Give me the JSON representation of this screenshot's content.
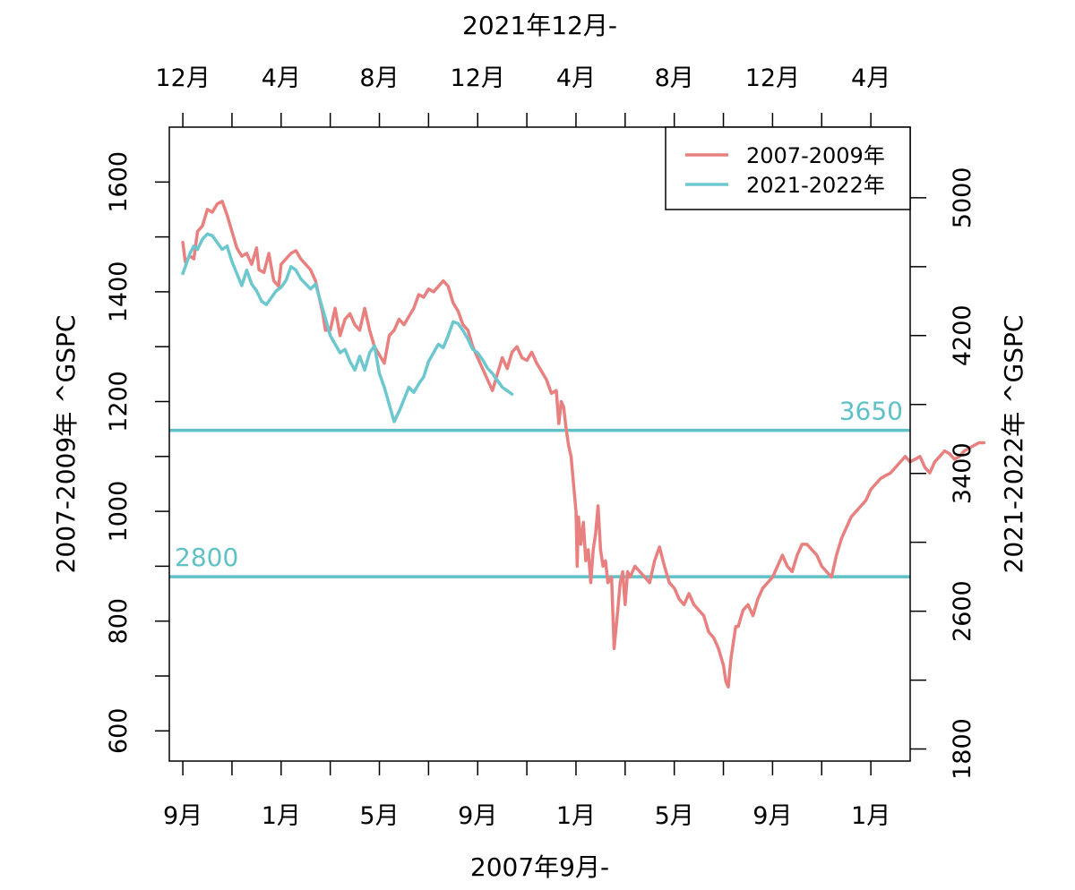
{
  "chart_data": {
    "type": "line",
    "title": "",
    "bottom_axis": {
      "label": "2007年9月-",
      "ticks": [
        "9月",
        "1月",
        "5月",
        "9月",
        "1月",
        "5月",
        "9月",
        "1月"
      ]
    },
    "top_axis": {
      "label": "2021年12月-",
      "ticks": [
        "12月",
        "4月",
        "8月",
        "12月",
        "4月",
        "8月",
        "12月",
        "4月"
      ]
    },
    "left_axis": {
      "label": "2007-2009年 ^GSPC",
      "ticks": [
        "600",
        "800",
        "1000",
        "1200",
        "1400",
        "1600"
      ],
      "ylim": [
        545,
        1700
      ]
    },
    "right_axis": {
      "label": "2021-2022年 ^GSPC",
      "ticks": [
        "1800",
        "2600",
        "3400",
        "4200",
        "5000"
      ],
      "ylim": [
        1730,
        5410
      ]
    },
    "x_months_bottom": {
      "start": "2007-09",
      "range_months": [
        -0.55,
        29.6
      ]
    },
    "x_months_top": {
      "start": "2021-12",
      "range_months": [
        -0.55,
        29.6
      ]
    },
    "legend": {
      "position": "top-right",
      "entries": [
        {
          "name": "2007-2009年",
          "color": "#E8807F"
        },
        {
          "name": "2021-2022年",
          "color": "#6CC8CE"
        }
      ]
    },
    "hlines": [
      {
        "label": "3650",
        "value": 3650,
        "axis": "right",
        "color": "#5FC0C8",
        "label_side": "right"
      },
      {
        "label": "2800",
        "value": 2800,
        "axis": "right",
        "color": "#5FC0C8",
        "label_side": "left"
      }
    ],
    "series": [
      {
        "name": "2007-2009年",
        "axis": "left",
        "color": "#E8807F",
        "points": [
          [
            0.0,
            1490
          ],
          [
            0.1,
            1455
          ],
          [
            0.3,
            1465
          ],
          [
            0.45,
            1460
          ],
          [
            0.6,
            1510
          ],
          [
            0.8,
            1520
          ],
          [
            1.0,
            1550
          ],
          [
            1.2,
            1545
          ],
          [
            1.4,
            1560
          ],
          [
            1.6,
            1565
          ],
          [
            1.8,
            1540
          ],
          [
            2.0,
            1510
          ],
          [
            2.2,
            1480
          ],
          [
            2.4,
            1465
          ],
          [
            2.6,
            1470
          ],
          [
            2.8,
            1450
          ],
          [
            3.0,
            1480
          ],
          [
            3.1,
            1440
          ],
          [
            3.3,
            1435
          ],
          [
            3.5,
            1470
          ],
          [
            3.7,
            1420
          ],
          [
            3.9,
            1410
          ],
          [
            4.0,
            1450
          ],
          [
            4.2,
            1460
          ],
          [
            4.4,
            1470
          ],
          [
            4.6,
            1475
          ],
          [
            4.8,
            1460
          ],
          [
            5.0,
            1450
          ],
          [
            5.2,
            1440
          ],
          [
            5.4,
            1420
          ],
          [
            5.6,
            1380
          ],
          [
            5.7,
            1360
          ],
          [
            5.8,
            1330
          ],
          [
            6.0,
            1330
          ],
          [
            6.2,
            1370
          ],
          [
            6.4,
            1320
          ],
          [
            6.6,
            1350
          ],
          [
            6.8,
            1360
          ],
          [
            7.0,
            1340
          ],
          [
            7.2,
            1330
          ],
          [
            7.4,
            1370
          ],
          [
            7.6,
            1330
          ],
          [
            7.8,
            1300
          ],
          [
            8.0,
            1285
          ],
          [
            8.2,
            1270
          ],
          [
            8.4,
            1320
          ],
          [
            8.6,
            1330
          ],
          [
            8.8,
            1350
          ],
          [
            9.0,
            1340
          ],
          [
            9.2,
            1355
          ],
          [
            9.4,
            1370
          ],
          [
            9.6,
            1395
          ],
          [
            9.8,
            1390
          ],
          [
            10.0,
            1405
          ],
          [
            10.2,
            1400
          ],
          [
            10.4,
            1410
          ],
          [
            10.6,
            1420
          ],
          [
            10.8,
            1410
          ],
          [
            11.0,
            1380
          ],
          [
            11.2,
            1365
          ],
          [
            11.4,
            1340
          ],
          [
            11.6,
            1330
          ],
          [
            11.8,
            1300
          ],
          [
            12.0,
            1280
          ],
          [
            12.2,
            1260
          ],
          [
            12.4,
            1240
          ],
          [
            12.6,
            1220
          ],
          [
            12.8,
            1250
          ],
          [
            13.0,
            1280
          ],
          [
            13.2,
            1260
          ],
          [
            13.4,
            1290
          ],
          [
            13.6,
            1300
          ],
          [
            13.8,
            1280
          ],
          [
            14.0,
            1275
          ],
          [
            14.2,
            1290
          ],
          [
            14.4,
            1270
          ],
          [
            14.6,
            1255
          ],
          [
            14.8,
            1240
          ],
          [
            15.0,
            1215
          ],
          [
            15.2,
            1220
          ],
          [
            15.3,
            1160
          ],
          [
            15.4,
            1200
          ],
          [
            15.5,
            1190
          ],
          [
            15.6,
            1150
          ],
          [
            15.7,
            1120
          ],
          [
            15.8,
            1100
          ],
          [
            15.9,
            1050
          ],
          [
            16.0,
            1000
          ],
          [
            16.05,
            900
          ],
          [
            16.1,
            990
          ],
          [
            16.2,
            940
          ],
          [
            16.3,
            980
          ],
          [
            16.4,
            910
          ],
          [
            16.5,
            930
          ],
          [
            16.6,
            870
          ],
          [
            16.7,
            930
          ],
          [
            16.8,
            960
          ],
          [
            16.9,
            1010
          ],
          [
            17.0,
            930
          ],
          [
            17.1,
            900
          ],
          [
            17.2,
            910
          ],
          [
            17.3,
            870
          ],
          [
            17.45,
            880
          ],
          [
            17.55,
            750
          ],
          [
            17.7,
            820
          ],
          [
            17.8,
            870
          ],
          [
            17.9,
            890
          ],
          [
            18.0,
            830
          ],
          [
            18.1,
            890
          ],
          [
            18.2,
            880
          ],
          [
            18.4,
            900
          ],
          [
            18.6,
            890
          ],
          [
            18.8,
            880
          ],
          [
            19.0,
            870
          ],
          [
            19.2,
            910
          ],
          [
            19.4,
            935
          ],
          [
            19.6,
            900
          ],
          [
            19.8,
            870
          ],
          [
            20.0,
            860
          ],
          [
            20.2,
            840
          ],
          [
            20.4,
            830
          ],
          [
            20.6,
            850
          ],
          [
            20.8,
            830
          ],
          [
            21.0,
            820
          ],
          [
            21.2,
            810
          ],
          [
            21.4,
            780
          ],
          [
            21.6,
            770
          ],
          [
            21.8,
            750
          ],
          [
            22.0,
            720
          ],
          [
            22.1,
            690
          ],
          [
            22.2,
            680
          ],
          [
            22.3,
            730
          ],
          [
            22.4,
            760
          ],
          [
            22.5,
            790
          ],
          [
            22.6,
            790
          ],
          [
            22.8,
            820
          ],
          [
            23.0,
            830
          ],
          [
            23.2,
            810
          ],
          [
            23.4,
            840
          ],
          [
            23.6,
            860
          ],
          [
            23.8,
            870
          ],
          [
            24.0,
            880
          ],
          [
            24.2,
            900
          ],
          [
            24.4,
            920
          ],
          [
            24.6,
            900
          ],
          [
            24.8,
            890
          ],
          [
            25.0,
            920
          ],
          [
            25.2,
            940
          ],
          [
            25.4,
            940
          ],
          [
            25.6,
            930
          ],
          [
            25.8,
            920
          ],
          [
            26.0,
            900
          ],
          [
            26.2,
            890
          ],
          [
            26.4,
            880
          ],
          [
            26.6,
            920
          ],
          [
            26.8,
            950
          ],
          [
            27.0,
            970
          ],
          [
            27.2,
            990
          ],
          [
            27.4,
            1000
          ],
          [
            27.6,
            1010
          ],
          [
            27.8,
            1020
          ],
          [
            28.0,
            1040
          ],
          [
            28.2,
            1050
          ],
          [
            28.4,
            1060
          ],
          [
            28.6,
            1065
          ],
          [
            28.8,
            1070
          ],
          [
            29.0,
            1080
          ],
          [
            29.2,
            1090
          ],
          [
            29.4,
            1100
          ],
          [
            29.6,
            1090
          ],
          [
            29.8,
            1095
          ],
          [
            30.0,
            1100
          ],
          [
            30.2,
            1080
          ],
          [
            30.4,
            1070
          ],
          [
            30.6,
            1090
          ],
          [
            30.8,
            1100
          ],
          [
            31.0,
            1110
          ],
          [
            31.2,
            1105
          ],
          [
            31.4,
            1095
          ],
          [
            31.6,
            1100
          ],
          [
            31.8,
            1110
          ],
          [
            32.0,
            1115
          ],
          [
            32.2,
            1120
          ],
          [
            32.4,
            1125
          ],
          [
            32.6,
            1125
          ]
        ]
      },
      {
        "name": "2021-2022年",
        "axis": "right",
        "color": "#6CC8CE",
        "points": [
          [
            0.0,
            4560
          ],
          [
            0.15,
            4620
          ],
          [
            0.3,
            4680
          ],
          [
            0.45,
            4720
          ],
          [
            0.6,
            4700
          ],
          [
            0.8,
            4760
          ],
          [
            1.0,
            4790
          ],
          [
            1.2,
            4780
          ],
          [
            1.4,
            4740
          ],
          [
            1.6,
            4700
          ],
          [
            1.8,
            4720
          ],
          [
            2.0,
            4630
          ],
          [
            2.2,
            4560
          ],
          [
            2.4,
            4490
          ],
          [
            2.6,
            4580
          ],
          [
            2.8,
            4500
          ],
          [
            3.0,
            4460
          ],
          [
            3.2,
            4400
          ],
          [
            3.4,
            4380
          ],
          [
            3.6,
            4420
          ],
          [
            3.8,
            4460
          ],
          [
            4.0,
            4480
          ],
          [
            4.2,
            4520
          ],
          [
            4.4,
            4600
          ],
          [
            4.6,
            4580
          ],
          [
            4.8,
            4530
          ],
          [
            5.0,
            4500
          ],
          [
            5.2,
            4470
          ],
          [
            5.4,
            4500
          ],
          [
            5.6,
            4400
          ],
          [
            5.8,
            4300
          ],
          [
            6.0,
            4200
          ],
          [
            6.2,
            4150
          ],
          [
            6.4,
            4100
          ],
          [
            6.6,
            4120
          ],
          [
            6.8,
            4050
          ],
          [
            7.0,
            4000
          ],
          [
            7.2,
            4080
          ],
          [
            7.4,
            4000
          ],
          [
            7.6,
            4100
          ],
          [
            7.8,
            4140
          ],
          [
            8.0,
            3980
          ],
          [
            8.2,
            3900
          ],
          [
            8.4,
            3800
          ],
          [
            8.6,
            3700
          ],
          [
            8.8,
            3760
          ],
          [
            9.0,
            3830
          ],
          [
            9.2,
            3900
          ],
          [
            9.4,
            3870
          ],
          [
            9.6,
            3920
          ],
          [
            9.8,
            3960
          ],
          [
            10.0,
            4050
          ],
          [
            10.2,
            4100
          ],
          [
            10.4,
            4150
          ],
          [
            10.6,
            4130
          ],
          [
            10.8,
            4200
          ],
          [
            11.0,
            4280
          ],
          [
            11.2,
            4270
          ],
          [
            11.4,
            4230
          ],
          [
            11.6,
            4180
          ],
          [
            11.8,
            4120
          ],
          [
            12.0,
            4100
          ],
          [
            12.2,
            4060
          ],
          [
            12.4,
            4010
          ],
          [
            12.6,
            3980
          ],
          [
            12.8,
            3940
          ],
          [
            13.0,
            3900
          ],
          [
            13.2,
            3880
          ],
          [
            13.4,
            3860
          ]
        ]
      }
    ]
  }
}
